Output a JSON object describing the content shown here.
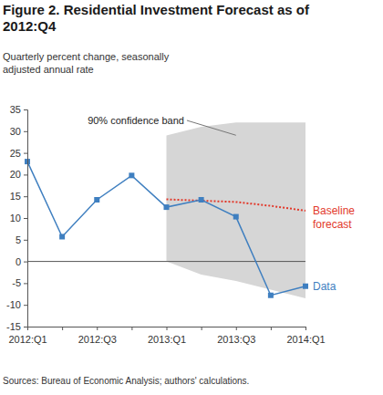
{
  "chart_data": {
    "type": "line",
    "title": "Figure 2. Residential Investment Forecast as of 2012:Q4",
    "y_label": "Quarterly percent change, seasonally adjusted annual rate",
    "source": "Sources: Bureau of Economic Analysis; authors' calculations.",
    "categories": [
      "2012:Q1",
      null,
      "2012:Q3",
      null,
      "2013:Q1",
      null,
      "2013:Q3",
      null,
      "2014:Q1"
    ],
    "ylim": [
      -15,
      35
    ],
    "yticks": [
      -15,
      -10,
      -5,
      0,
      5,
      10,
      15,
      20,
      25,
      30,
      35
    ],
    "reference_lines": [
      0
    ],
    "grid": false,
    "series": [
      {
        "name": "90% confidence band",
        "type": "area",
        "color": "#d6d6d6",
        "lower": [
          null,
          null,
          null,
          null,
          0,
          -3,
          -4.5,
          -6.5,
          -8.5
        ],
        "upper": [
          null,
          null,
          null,
          null,
          29,
          31,
          32,
          32,
          32
        ]
      },
      {
        "name": "Baseline forecast",
        "type": "line",
        "color": "#e2392b",
        "line_style": "dotted",
        "values": [
          null,
          null,
          null,
          null,
          14.3,
          14,
          13.7,
          12.8,
          11.7
        ]
      },
      {
        "name": "Data",
        "type": "line",
        "color": "#3f7fc0",
        "marker": "square",
        "values": [
          23,
          5.7,
          14.2,
          19.8,
          12.5,
          14.2,
          10.3,
          -7.8,
          -5.7
        ]
      }
    ]
  }
}
